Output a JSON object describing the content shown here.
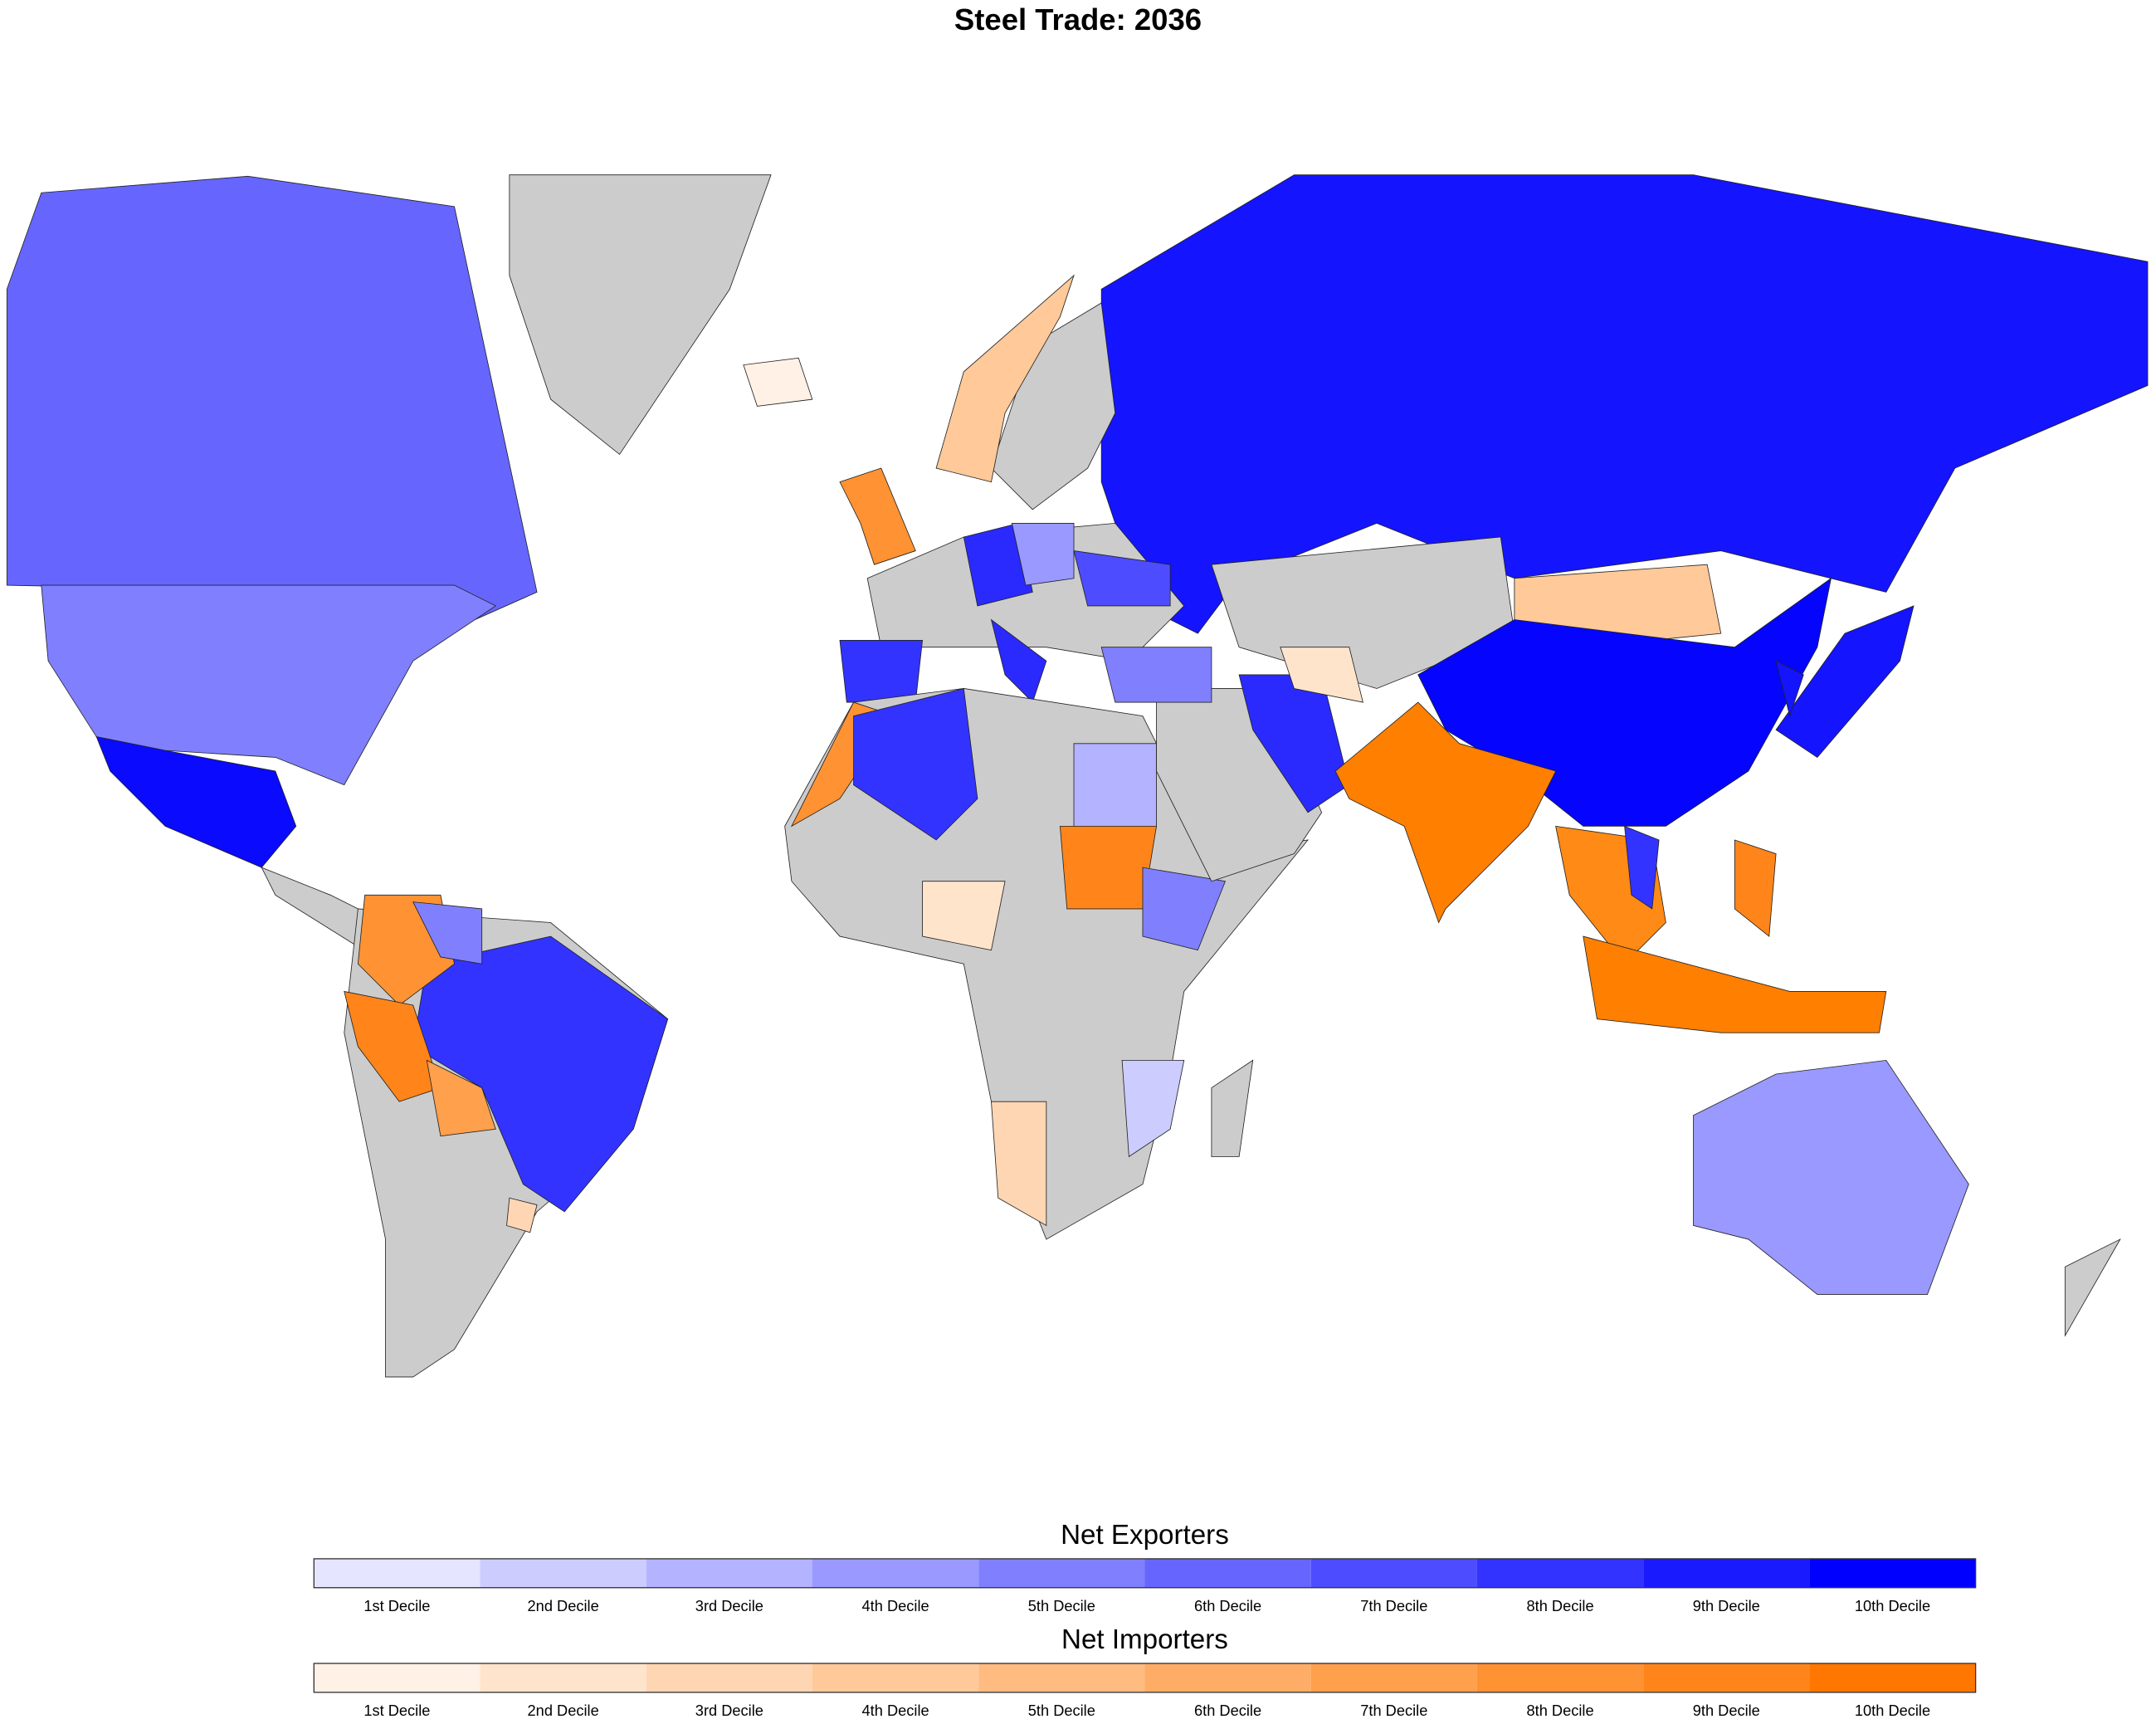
{
  "title": "Steel Trade: 2036",
  "legends": [
    {
      "title": "Net Exporters",
      "colors": [
        "#e5e5ff",
        "#ccccff",
        "#b3b3ff",
        "#9999ff",
        "#8080ff",
        "#6666ff",
        "#4d4dff",
        "#3333ff",
        "#1a1aff",
        "#0000ff"
      ],
      "labels": [
        "1st Decile",
        "2nd Decile",
        "3rd Decile",
        "4th Decile",
        "5th Decile",
        "6th Decile",
        "7th Decile",
        "8th Decile",
        "9th Decile",
        "10th Decile"
      ]
    },
    {
      "title": "Net Importers",
      "colors": [
        "#fff1e6",
        "#ffe4cc",
        "#ffd6b3",
        "#ffc999",
        "#ffbb80",
        "#ffad66",
        "#ffa04d",
        "#ff9233",
        "#ff851a",
        "#ff7700"
      ],
      "labels": [
        "1st Decile",
        "2nd Decile",
        "3rd Decile",
        "4th Decile",
        "5th Decile",
        "6th Decile",
        "7th Decile",
        "8th Decile",
        "9th Decile",
        "10th Decile"
      ]
    }
  ]
}
